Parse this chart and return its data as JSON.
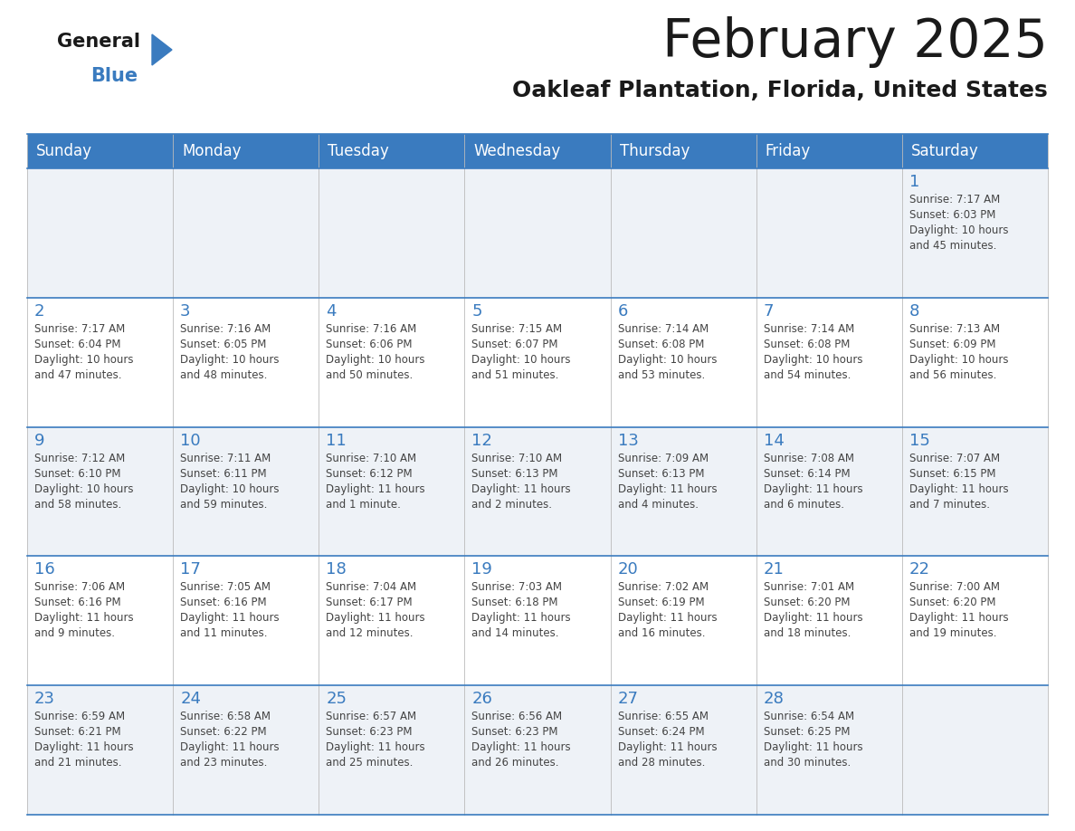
{
  "title": "February 2025",
  "subtitle": "Oakleaf Plantation, Florida, United States",
  "header_color": "#3a7bbf",
  "header_text_color": "#ffffff",
  "border_color": "#3a7bbf",
  "day_headers": [
    "Sunday",
    "Monday",
    "Tuesday",
    "Wednesday",
    "Thursday",
    "Friday",
    "Saturday"
  ],
  "title_color": "#1a1a1a",
  "subtitle_color": "#1a1a1a",
  "cell_text_color": "#444444",
  "day_num_color": "#3a7bbf",
  "row_bg_odd": "#eef2f7",
  "row_bg_even": "#ffffff",
  "calendar": [
    [
      null,
      null,
      null,
      null,
      null,
      null,
      {
        "day": "1",
        "sunrise": "7:17 AM",
        "sunset": "6:03 PM",
        "daylight_line1": "Daylight: 10 hours",
        "daylight_line2": "and 45 minutes."
      }
    ],
    [
      {
        "day": "2",
        "sunrise": "7:17 AM",
        "sunset": "6:04 PM",
        "daylight_line1": "Daylight: 10 hours",
        "daylight_line2": "and 47 minutes."
      },
      {
        "day": "3",
        "sunrise": "7:16 AM",
        "sunset": "6:05 PM",
        "daylight_line1": "Daylight: 10 hours",
        "daylight_line2": "and 48 minutes."
      },
      {
        "day": "4",
        "sunrise": "7:16 AM",
        "sunset": "6:06 PM",
        "daylight_line1": "Daylight: 10 hours",
        "daylight_line2": "and 50 minutes."
      },
      {
        "day": "5",
        "sunrise": "7:15 AM",
        "sunset": "6:07 PM",
        "daylight_line1": "Daylight: 10 hours",
        "daylight_line2": "and 51 minutes."
      },
      {
        "day": "6",
        "sunrise": "7:14 AM",
        "sunset": "6:08 PM",
        "daylight_line1": "Daylight: 10 hours",
        "daylight_line2": "and 53 minutes."
      },
      {
        "day": "7",
        "sunrise": "7:14 AM",
        "sunset": "6:08 PM",
        "daylight_line1": "Daylight: 10 hours",
        "daylight_line2": "and 54 minutes."
      },
      {
        "day": "8",
        "sunrise": "7:13 AM",
        "sunset": "6:09 PM",
        "daylight_line1": "Daylight: 10 hours",
        "daylight_line2": "and 56 minutes."
      }
    ],
    [
      {
        "day": "9",
        "sunrise": "7:12 AM",
        "sunset": "6:10 PM",
        "daylight_line1": "Daylight: 10 hours",
        "daylight_line2": "and 58 minutes."
      },
      {
        "day": "10",
        "sunrise": "7:11 AM",
        "sunset": "6:11 PM",
        "daylight_line1": "Daylight: 10 hours",
        "daylight_line2": "and 59 minutes."
      },
      {
        "day": "11",
        "sunrise": "7:10 AM",
        "sunset": "6:12 PM",
        "daylight_line1": "Daylight: 11 hours",
        "daylight_line2": "and 1 minute."
      },
      {
        "day": "12",
        "sunrise": "7:10 AM",
        "sunset": "6:13 PM",
        "daylight_line1": "Daylight: 11 hours",
        "daylight_line2": "and 2 minutes."
      },
      {
        "day": "13",
        "sunrise": "7:09 AM",
        "sunset": "6:13 PM",
        "daylight_line1": "Daylight: 11 hours",
        "daylight_line2": "and 4 minutes."
      },
      {
        "day": "14",
        "sunrise": "7:08 AM",
        "sunset": "6:14 PM",
        "daylight_line1": "Daylight: 11 hours",
        "daylight_line2": "and 6 minutes."
      },
      {
        "day": "15",
        "sunrise": "7:07 AM",
        "sunset": "6:15 PM",
        "daylight_line1": "Daylight: 11 hours",
        "daylight_line2": "and 7 minutes."
      }
    ],
    [
      {
        "day": "16",
        "sunrise": "7:06 AM",
        "sunset": "6:16 PM",
        "daylight_line1": "Daylight: 11 hours",
        "daylight_line2": "and 9 minutes."
      },
      {
        "day": "17",
        "sunrise": "7:05 AM",
        "sunset": "6:16 PM",
        "daylight_line1": "Daylight: 11 hours",
        "daylight_line2": "and 11 minutes."
      },
      {
        "day": "18",
        "sunrise": "7:04 AM",
        "sunset": "6:17 PM",
        "daylight_line1": "Daylight: 11 hours",
        "daylight_line2": "and 12 minutes."
      },
      {
        "day": "19",
        "sunrise": "7:03 AM",
        "sunset": "6:18 PM",
        "daylight_line1": "Daylight: 11 hours",
        "daylight_line2": "and 14 minutes."
      },
      {
        "day": "20",
        "sunrise": "7:02 AM",
        "sunset": "6:19 PM",
        "daylight_line1": "Daylight: 11 hours",
        "daylight_line2": "and 16 minutes."
      },
      {
        "day": "21",
        "sunrise": "7:01 AM",
        "sunset": "6:20 PM",
        "daylight_line1": "Daylight: 11 hours",
        "daylight_line2": "and 18 minutes."
      },
      {
        "day": "22",
        "sunrise": "7:00 AM",
        "sunset": "6:20 PM",
        "daylight_line1": "Daylight: 11 hours",
        "daylight_line2": "and 19 minutes."
      }
    ],
    [
      {
        "day": "23",
        "sunrise": "6:59 AM",
        "sunset": "6:21 PM",
        "daylight_line1": "Daylight: 11 hours",
        "daylight_line2": "and 21 minutes."
      },
      {
        "day": "24",
        "sunrise": "6:58 AM",
        "sunset": "6:22 PM",
        "daylight_line1": "Daylight: 11 hours",
        "daylight_line2": "and 23 minutes."
      },
      {
        "day": "25",
        "sunrise": "6:57 AM",
        "sunset": "6:23 PM",
        "daylight_line1": "Daylight: 11 hours",
        "daylight_line2": "and 25 minutes."
      },
      {
        "day": "26",
        "sunrise": "6:56 AM",
        "sunset": "6:23 PM",
        "daylight_line1": "Daylight: 11 hours",
        "daylight_line2": "and 26 minutes."
      },
      {
        "day": "27",
        "sunrise": "6:55 AM",
        "sunset": "6:24 PM",
        "daylight_line1": "Daylight: 11 hours",
        "daylight_line2": "and 28 minutes."
      },
      {
        "day": "28",
        "sunrise": "6:54 AM",
        "sunset": "6:25 PM",
        "daylight_line1": "Daylight: 11 hours",
        "daylight_line2": "and 30 minutes."
      },
      null
    ]
  ]
}
